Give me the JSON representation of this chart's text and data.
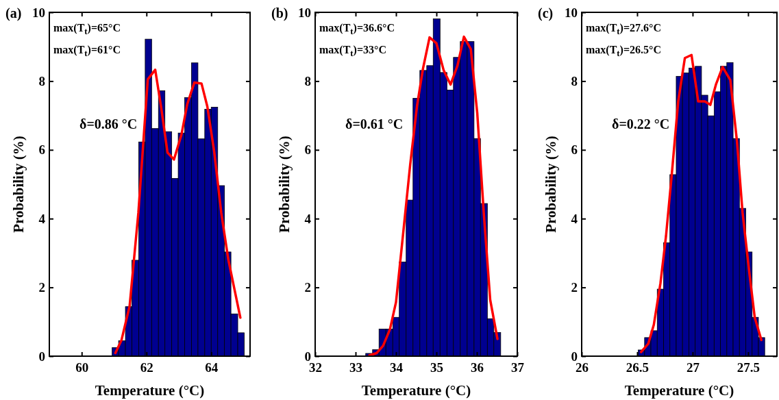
{
  "chart_data": [
    {
      "type": "histogram",
      "title": "(a)",
      "xlabel": "Temperature (°C)",
      "ylabel": "Probability (%)",
      "annotations": [
        "max(T$_{t}$)=65°C",
        "max(T$_{t}$)=61°C",
        "δ=0.86 °C"
      ],
      "xlim": [
        59,
        65.2
      ],
      "xticks": [
        60,
        62,
        64
      ],
      "ylim": [
        0,
        10
      ],
      "yticks": [
        0,
        2,
        4,
        6,
        8,
        10
      ],
      "bins": [
        60.94,
        61.14,
        61.35,
        61.55,
        61.76,
        61.96,
        62.16,
        62.37,
        62.57,
        62.78,
        62.98,
        63.18,
        63.39,
        63.59,
        63.8,
        64.0,
        64.2,
        64.41,
        64.61,
        64.82,
        65.02
      ],
      "series": [
        {
          "color": "#000090",
          "values": [
            0.25,
            0.45,
            1.44,
            2.79,
            6.23,
            9.22,
            6.62,
            7.72,
            6.53,
            5.17,
            6.49,
            7.52,
            8.53,
            6.32,
            7.18,
            7.24,
            4.96,
            3.03,
            1.23,
            0.68
          ]
        },
        {
          "type": "line",
          "color": "#ff0000",
          "x": [
            61.04,
            61.23,
            61.48,
            61.75,
            62.04,
            62.27,
            62.45,
            62.65,
            62.85,
            63.08,
            63.26,
            63.48,
            63.7,
            63.88,
            64.09,
            64.31,
            64.53,
            64.71,
            64.9
          ],
          "values": [
            0.09,
            0.47,
            1.46,
            4.17,
            8.05,
            8.33,
            7.26,
            5.92,
            5.72,
            6.44,
            7.33,
            7.96,
            7.93,
            7.26,
            5.96,
            4.17,
            2.8,
            1.98,
            1.12
          ]
        }
      ]
    },
    {
      "type": "histogram",
      "title": "(b)",
      "xlabel": "Temperature (°C)",
      "ylabel": "Probability (%)",
      "annotations": [
        "max(T$_{t}$)=36.6°C",
        "max(T$_{t}$)=33°C",
        "δ=0.61 °C"
      ],
      "xlim": [
        32,
        37
      ],
      "xticks": [
        32,
        33,
        34,
        35,
        36,
        37
      ],
      "ylim": [
        0,
        10
      ],
      "yticks": [
        0,
        2,
        4,
        6,
        8,
        10
      ],
      "bins": [
        33.25,
        33.42,
        33.58,
        33.75,
        33.92,
        34.08,
        34.25,
        34.42,
        34.59,
        34.76,
        34.92,
        35.09,
        35.26,
        35.42,
        35.59,
        35.76,
        35.93,
        36.09,
        36.26,
        36.42,
        36.59
      ],
      "series": [
        {
          "color": "#000090",
          "values": [
            0.08,
            0.19,
            0.79,
            0.79,
            1.13,
            2.74,
            4.54,
            7.5,
            8.31,
            8.45,
            9.81,
            8.25,
            7.74,
            8.69,
            9.15,
            9.15,
            6.33,
            4.44,
            1.09,
            0.69
          ]
        },
        {
          "type": "line",
          "color": "#ff0000",
          "x": [
            33.34,
            33.52,
            33.68,
            33.85,
            34.0,
            34.17,
            34.35,
            34.52,
            34.67,
            34.83,
            35.0,
            35.18,
            35.35,
            35.52,
            35.68,
            35.85,
            36.01,
            36.17,
            36.33,
            36.51
          ],
          "values": [
            0.02,
            0.09,
            0.3,
            0.78,
            1.57,
            3.49,
            5.56,
            7.28,
            8.38,
            9.27,
            9.1,
            8.31,
            7.9,
            8.45,
            9.29,
            8.93,
            7.07,
            4.18,
            1.64,
            0.5
          ]
        }
      ]
    },
    {
      "type": "histogram",
      "title": "(c)",
      "xlabel": "Temperature (°C)",
      "ylabel": "Probability (%)",
      "annotations": [
        "max(T$_{t}$)=27.6°C",
        "max(T$_{t}$)=26.5°C",
        "δ=0.22 °C"
      ],
      "xlim": [
        26,
        27.76
      ],
      "xticks": [
        26,
        26.5,
        27,
        27.5
      ],
      "ylim": [
        0,
        10
      ],
      "yticks": [
        0,
        2,
        4,
        6,
        8,
        10
      ],
      "bins": [
        26.51,
        26.567,
        26.624,
        26.681,
        26.738,
        26.795,
        26.852,
        26.909,
        26.966,
        27.023,
        27.08,
        27.137,
        27.194,
        27.251,
        27.308,
        27.365,
        27.422,
        27.479,
        27.536,
        27.593,
        27.65
      ],
      "series": [
        {
          "color": "#000090",
          "values": [
            0.18,
            0.54,
            0.74,
            1.95,
            3.3,
            5.28,
            8.14,
            8.24,
            8.38,
            8.43,
            7.59,
            6.99,
            7.69,
            8.43,
            8.54,
            6.33,
            4.3,
            3.03,
            1.13,
            0.54
          ]
        },
        {
          "type": "line",
          "color": "#ff0000",
          "x": [
            26.535,
            26.6,
            26.65,
            26.71,
            26.76,
            26.81,
            26.87,
            26.93,
            26.99,
            27.05,
            27.11,
            27.16,
            27.21,
            27.27,
            27.34,
            27.4,
            27.45,
            27.51,
            27.56,
            27.62
          ],
          "values": [
            0.12,
            0.36,
            0.91,
            2.12,
            3.49,
            5.21,
            7.41,
            8.67,
            8.76,
            7.41,
            7.41,
            7.31,
            7.9,
            8.41,
            8.03,
            6.24,
            4.18,
            2.46,
            1.12,
            0.47
          ]
        }
      ]
    }
  ]
}
